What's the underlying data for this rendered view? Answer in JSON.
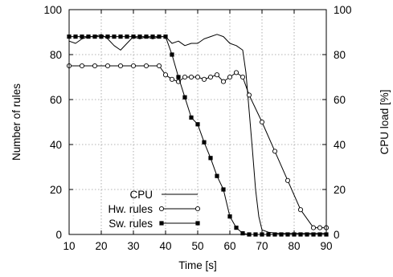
{
  "chart_data": {
    "type": "line",
    "xlabel": "Time [s]",
    "ylabel_left": "Number of rules",
    "ylabel_right": "CPU load [%]",
    "xlim": [
      10,
      90
    ],
    "ylim_left": [
      0,
      100
    ],
    "ylim_right": [
      0,
      100
    ],
    "x_ticks": [
      "10",
      "20",
      "30",
      "40",
      "50",
      "60",
      "70",
      "80",
      "90"
    ],
    "y_ticks_left": [
      "0",
      "20",
      "40",
      "60",
      "80",
      "100"
    ],
    "y_ticks_right": [
      "0",
      "20",
      "40",
      "60",
      "80",
      "100"
    ],
    "grid": true,
    "legend_position": "bottom-left",
    "series": [
      {
        "name": "CPU",
        "axis": "right",
        "marker": "none",
        "x": [
          10,
          12,
          14,
          16,
          18,
          20,
          22,
          24,
          26,
          28,
          30,
          32,
          34,
          36,
          38,
          40,
          42,
          44,
          46,
          48,
          50,
          52,
          54,
          56,
          58,
          60,
          62,
          64,
          65,
          66,
          67,
          68,
          69,
          70,
          72,
          75,
          80,
          85,
          90
        ],
        "y": [
          86,
          85,
          87,
          88,
          88,
          89,
          87,
          84,
          82,
          85,
          88,
          87,
          88,
          87,
          88,
          88,
          85,
          86,
          84,
          85,
          85,
          87,
          88,
          89,
          88,
          85,
          84,
          82,
          72,
          55,
          38,
          20,
          8,
          2,
          1,
          0.5,
          0.5,
          0.5,
          0.5
        ]
      },
      {
        "name": "Hw. rules",
        "axis": "left",
        "marker": "circle",
        "x": [
          10,
          14,
          18,
          22,
          26,
          30,
          34,
          38,
          40,
          42,
          44,
          46,
          48,
          50,
          52,
          54,
          56,
          58,
          60,
          62,
          64,
          66,
          70,
          74,
          78,
          82,
          86,
          88,
          90
        ],
        "y": [
          75,
          75,
          75,
          75,
          75,
          75,
          75,
          75,
          71,
          69,
          68,
          70,
          70,
          70,
          69,
          70,
          71,
          68,
          70,
          72,
          70,
          62,
          50,
          37,
          24,
          11,
          3,
          3,
          3
        ]
      },
      {
        "name": "Sw. rules",
        "axis": "left",
        "marker": "square",
        "x": [
          10,
          12,
          14,
          16,
          18,
          20,
          22,
          24,
          26,
          28,
          30,
          32,
          34,
          36,
          38,
          40,
          42,
          44,
          46,
          48,
          50,
          52,
          54,
          56,
          58,
          60,
          62,
          64,
          66,
          68,
          70,
          72,
          74,
          76,
          78,
          80,
          82,
          84,
          86,
          88,
          90
        ],
        "y": [
          88,
          88,
          88,
          88,
          88,
          88,
          88,
          88,
          88,
          88,
          88,
          88,
          88,
          88,
          88,
          88,
          80,
          70,
          61,
          52,
          49,
          41,
          34,
          26,
          20,
          8,
          3,
          0.5,
          0,
          0,
          0,
          0,
          0,
          0,
          0,
          0,
          0,
          0,
          0,
          0,
          0
        ]
      }
    ]
  }
}
